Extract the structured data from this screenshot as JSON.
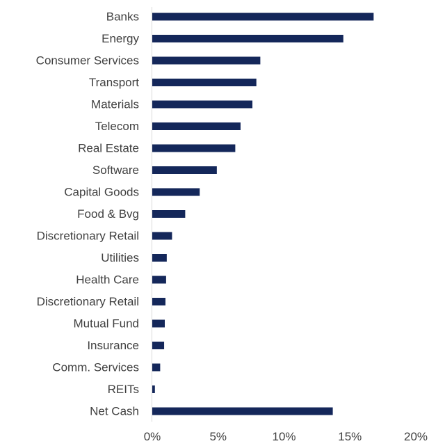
{
  "chart_data": {
    "type": "bar",
    "orientation": "horizontal",
    "categories": [
      "Banks",
      "Energy",
      "Consumer Services",
      "Transport",
      "Materials",
      "Telecom",
      "Real Estate",
      "Software ",
      "Capital Goods",
      "Food & Bvg",
      "Discretionary Retail",
      "Utilities",
      "Health Care",
      "Discretionary Retail",
      "Mutual Fund",
      "Insurance",
      "Comm. Services",
      "REITs",
      "Net Cash"
    ],
    "values": [
      16.8,
      14.5,
      8.2,
      7.9,
      7.6,
      6.7,
      6.3,
      4.9,
      3.6,
      2.5,
      1.5,
      1.1,
      1.05,
      1.0,
      0.95,
      0.9,
      0.6,
      0.2,
      13.7
    ],
    "xlim": [
      0,
      20
    ],
    "ticks": [
      "0%",
      "5%",
      "10%",
      "15%",
      "20%"
    ],
    "tick_values": [
      0,
      5,
      10,
      15,
      20
    ],
    "bar_color": "#14275a",
    "axis_color": "#d9d9d9",
    "grid": false,
    "legend": "none"
  }
}
